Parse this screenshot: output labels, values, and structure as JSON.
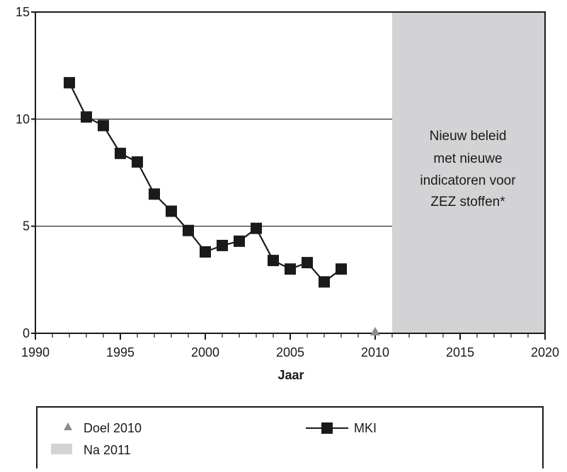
{
  "chart_data": {
    "type": "line",
    "title": "",
    "xlabel": "Jaar",
    "ylabel": "",
    "xlim": [
      1990,
      2020
    ],
    "ylim": [
      0,
      15
    ],
    "x_ticks": [
      1990,
      1995,
      2000,
      2005,
      2010,
      2015,
      2020
    ],
    "x_tick_labels": [
      "1990",
      "1995",
      "2000",
      "2005",
      "2010",
      "2015",
      "2020"
    ],
    "y_ticks": [
      0,
      5,
      10,
      15
    ],
    "y_tick_labels": [
      "0",
      "5",
      "10",
      "15"
    ],
    "grid": {
      "horizontal": true,
      "vertical": false
    },
    "series": [
      {
        "name": "MKI",
        "marker": "square",
        "color": "#1a1a1a",
        "x": [
          1992,
          1993,
          1994,
          1995,
          1996,
          1997,
          1998,
          1999,
          2000,
          2001,
          2002,
          2003,
          2004,
          2005,
          2006,
          2007,
          2008
        ],
        "values": [
          11.7,
          10.1,
          9.7,
          8.4,
          8.0,
          6.5,
          5.7,
          4.8,
          3.8,
          4.1,
          4.3,
          4.9,
          3.4,
          3.0,
          3.3,
          2.4,
          3.0
        ]
      },
      {
        "name": "Doel 2010",
        "marker": "triangle",
        "color": "#8c8c8c",
        "x": [
          2010
        ],
        "values": [
          0
        ]
      }
    ],
    "shaded_region": {
      "name": "Na 2011",
      "x_from": 2011,
      "x_to": 2020,
      "color": "#d3d3d5",
      "text_lines": [
        "Nieuw beleid",
        "met nieuwe",
        "indicatoren voor",
        "ZEZ stoffen*"
      ]
    },
    "legend": {
      "placement": "bottom",
      "items": [
        {
          "label": "Doel 2010",
          "symbol": "triangle",
          "color": "#8c8c8c"
        },
        {
          "label": "Na 2011",
          "symbol": "rect",
          "color": "#d3d3d5"
        },
        {
          "label": "MKI",
          "symbol": "line-square",
          "color": "#1a1a1a"
        }
      ]
    }
  }
}
